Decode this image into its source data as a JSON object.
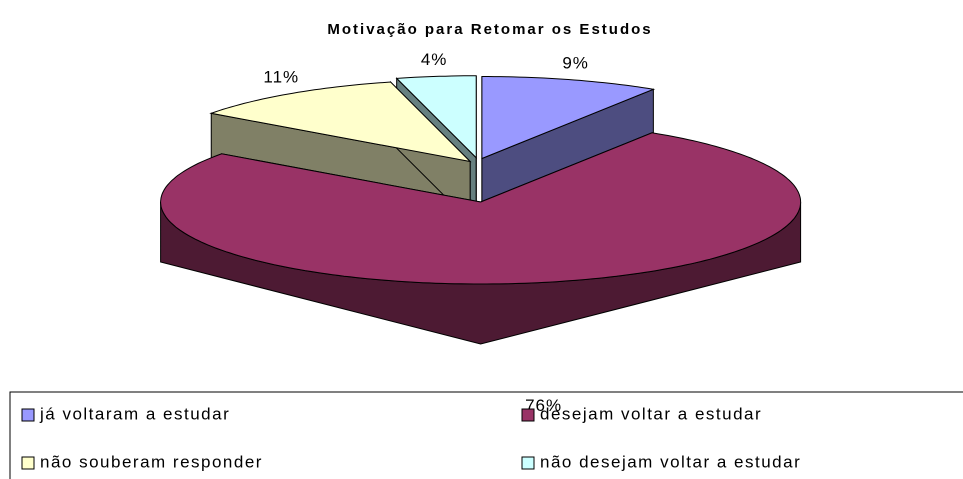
{
  "chart_data": {
    "type": "pie3d",
    "title": "Motivação  para Retomar  os Estudos",
    "categories": [
      "já voltaram a estudar",
      "desejam voltar a estudar",
      "não souberam responder",
      "não desejam voltar a estudar"
    ],
    "values": [
      9,
      76,
      11,
      4
    ],
    "value_labels": [
      "9%",
      "76%",
      "11%",
      "4%"
    ],
    "colors": [
      "#9999ff",
      "#993366",
      "#ffffcc",
      "#ccffff"
    ],
    "legend": "bottom"
  }
}
